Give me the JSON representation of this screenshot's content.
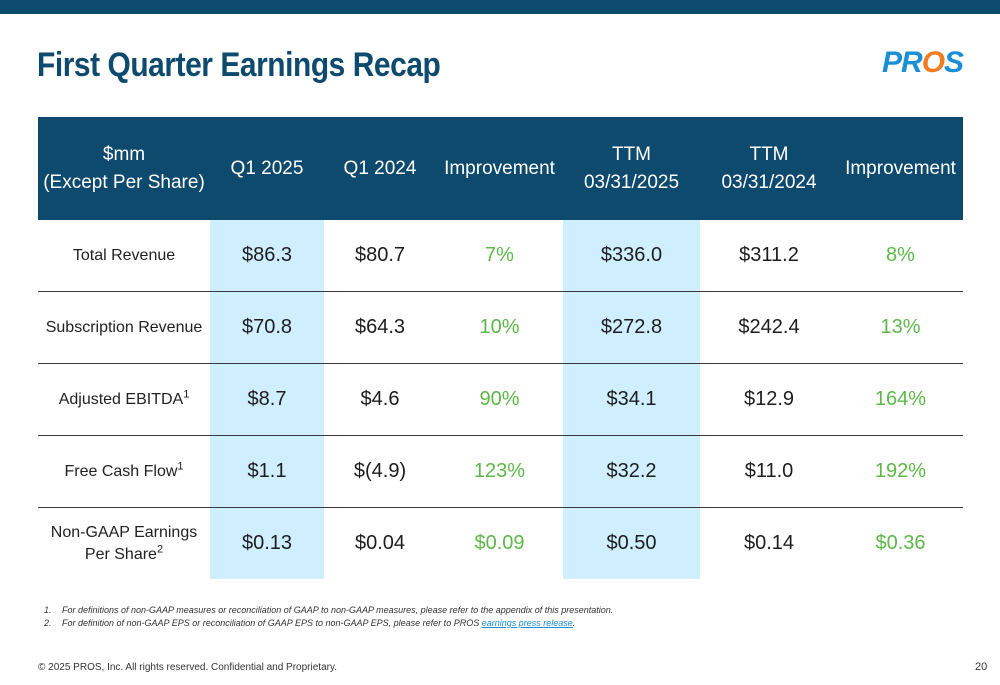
{
  "slide": {
    "title": "First Quarter Earnings Recap",
    "logo_text": "PROS",
    "page_number": "20",
    "copyright": "© 2025 PROS, Inc. All rights reserved. Confidential and Proprietary."
  },
  "colors": {
    "header_bg": "#0e4a6e",
    "highlight_col": "#cfeeff",
    "improvement_text": "#5db848",
    "logo_blue": "#1a8fd6",
    "logo_orange": "#f47c20"
  },
  "table": {
    "headers": {
      "metric_line1": "$mm",
      "metric_line2": "(Except Per Share)",
      "q1_2025": "Q1 2025",
      "q1_2024": "Q1 2024",
      "improvement_q": "Improvement",
      "ttm_2025_line1": "TTM",
      "ttm_2025_line2": "03/31/2025",
      "ttm_2024_line1": "TTM",
      "ttm_2024_line2": "03/31/2024",
      "improvement_ttm": "Improvement"
    },
    "rows": [
      {
        "label": "Total Revenue",
        "label2": "",
        "sup": "",
        "q1_2025": "$86.3",
        "q1_2024": "$80.7",
        "imp_q": "7%",
        "ttm_2025": "$336.0",
        "ttm_2024": "$311.2",
        "imp_ttm": "8%"
      },
      {
        "label": "Subscription Revenue",
        "label2": "",
        "sup": "",
        "q1_2025": "$70.8",
        "q1_2024": "$64.3",
        "imp_q": "10%",
        "ttm_2025": "$272.8",
        "ttm_2024": "$242.4",
        "imp_ttm": "13%"
      },
      {
        "label": "Adjusted EBITDA",
        "label2": "",
        "sup": "1",
        "q1_2025": "$8.7",
        "q1_2024": "$4.6",
        "imp_q": "90%",
        "ttm_2025": "$34.1",
        "ttm_2024": "$12.9",
        "imp_ttm": "164%"
      },
      {
        "label": "Free Cash Flow",
        "label2": "",
        "sup": "1",
        "q1_2025": "$1.1",
        "q1_2024": "$(4.9)",
        "imp_q": "123%",
        "ttm_2025": "$32.2",
        "ttm_2024": "$11.0",
        "imp_ttm": "192%"
      },
      {
        "label": "Non-GAAP Earnings",
        "label2": "Per Share",
        "sup": "2",
        "q1_2025": "$0.13",
        "q1_2024": "$0.04",
        "imp_q": "$0.09",
        "ttm_2025": "$0.50",
        "ttm_2024": "$0.14",
        "imp_ttm": "$0.36"
      }
    ]
  },
  "footnotes": [
    {
      "num": "1.",
      "text": "For definitions of non-GAAP measures or reconciliation of GAAP to non-GAAP measures, please refer to the appendix of this presentation.",
      "link": ""
    },
    {
      "num": "2.",
      "text": "For definition of non-GAAP EPS or reconciliation of GAAP EPS to non-GAAP EPS, please refer to PROS ",
      "link": "earnings press release",
      "after": "."
    }
  ]
}
